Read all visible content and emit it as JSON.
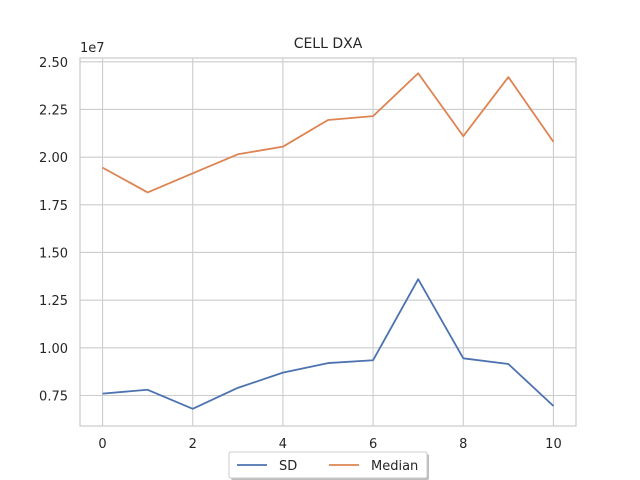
{
  "chart_data": {
    "type": "line",
    "title": "CELL DXA",
    "xlabel": "",
    "ylabel": "",
    "y_offset_label": "1e7",
    "x": [
      0,
      1,
      2,
      3,
      4,
      5,
      6,
      7,
      8,
      9,
      10
    ],
    "xlim": [
      -0.5,
      10.5
    ],
    "ylim": [
      0.59,
      2.52
    ],
    "x_ticks": [
      0,
      2,
      4,
      6,
      8,
      10
    ],
    "x_tick_labels": [
      "0",
      "2",
      "4",
      "6",
      "8",
      "10"
    ],
    "y_ticks": [
      0.75,
      1.0,
      1.25,
      1.5,
      1.75,
      2.0,
      2.25,
      2.5
    ],
    "y_tick_labels": [
      "0.75",
      "1.00",
      "1.25",
      "1.50",
      "1.75",
      "2.00",
      "2.25",
      "2.50"
    ],
    "grid": true,
    "legend_position": "bottom-center",
    "series": [
      {
        "name": "SD",
        "color": "#4c72b0",
        "values": [
          0.76,
          0.78,
          0.68,
          0.79,
          0.87,
          0.92,
          0.935,
          1.36,
          0.945,
          0.915,
          0.695
        ]
      },
      {
        "name": "Median",
        "color": "#dd8452",
        "values": [
          1.945,
          1.815,
          1.915,
          2.015,
          2.055,
          2.195,
          2.215,
          2.44,
          2.11,
          2.42,
          2.08
        ]
      }
    ]
  }
}
